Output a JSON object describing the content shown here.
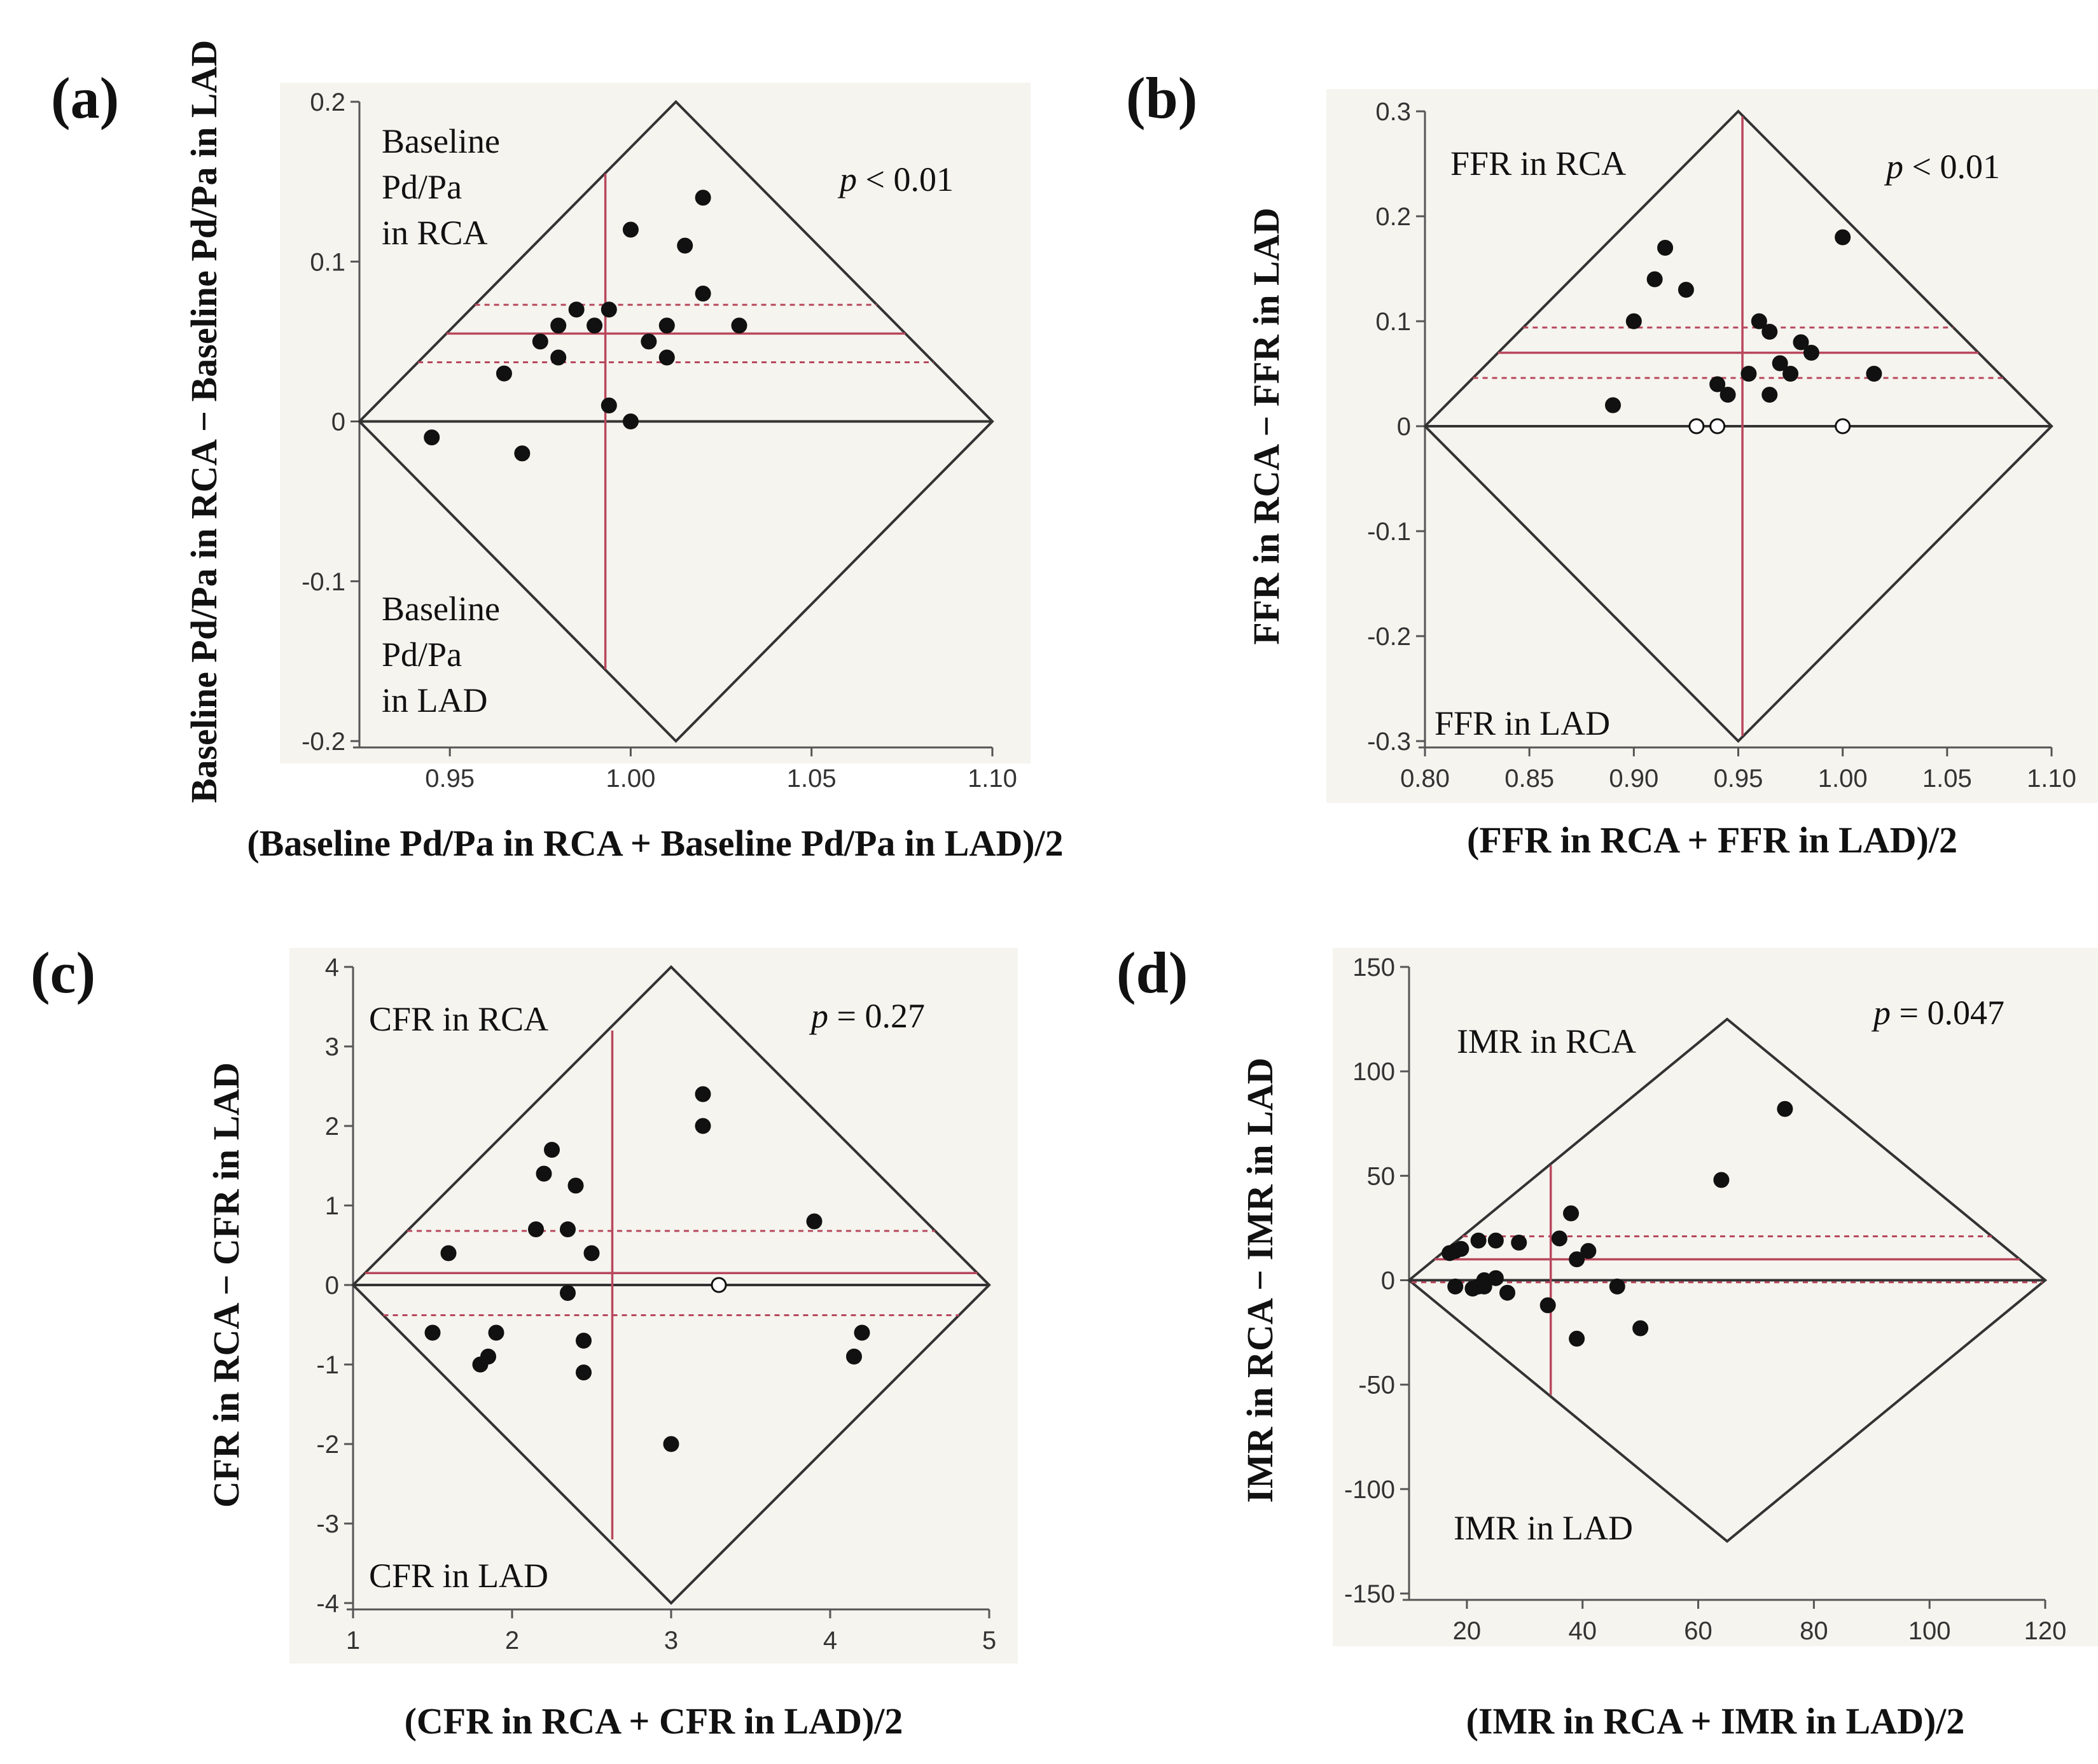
{
  "chart_data": [
    {
      "type": "scatter",
      "panel": "(a)",
      "xlabel": "(Baseline Pd/Pa in RCA  + Baseline Pd/Pa in LAD)/2",
      "ylabel": "Baseline Pd/Pa in RCA − Baseline Pd/Pa in LAD",
      "xlim": [
        0.925,
        1.1
      ],
      "ylim": [
        -0.2,
        0.2
      ],
      "x_ticks": [
        "0.95",
        "1.00",
        "1.05",
        "1.10"
      ],
      "x_tick_values": [
        0.95,
        1.0,
        1.05,
        1.1
      ],
      "y_ticks": [
        "-0.2",
        "-0.1",
        "0",
        "0.1",
        "0.2"
      ],
      "y_tick_values": [
        -0.2,
        -0.1,
        0,
        0.1,
        0.2
      ],
      "corner_top_lines": [
        "Baseline",
        "Pd/Pa",
        "in RCA"
      ],
      "corner_bottom_lines": [
        "Baseline",
        "Pd/Pa",
        "in LAD"
      ],
      "p_symbol": "p",
      "p_text": " < 0.01",
      "diamond": {
        "x_left": 0.925,
        "x_right": 1.1,
        "y_half": 0.2
      },
      "mean_x": 0.993,
      "mean_diff": 0.055,
      "ci": [
        0.037,
        0.073
      ],
      "mean_x_range": [
        -0.155,
        0.155
      ],
      "x": [
        0.945,
        0.965,
        0.97,
        0.975,
        0.98,
        0.98,
        0.985,
        0.99,
        0.994,
        0.994,
        1.0,
        1.0,
        1.005,
        1.01,
        1.01,
        1.015,
        1.02,
        1.02,
        1.03
      ],
      "y": [
        -0.01,
        0.03,
        -0.02,
        0.05,
        0.06,
        0.04,
        0.07,
        0.06,
        0.07,
        0.01,
        0.12,
        0.0,
        0.05,
        0.06,
        0.04,
        0.11,
        0.14,
        0.08,
        0.06
      ]
    },
    {
      "type": "scatter",
      "panel": "(b)",
      "xlabel": "(FFR in RCA  + FFR in LAD)/2",
      "ylabel": "FFR in RCA − FFR in LAD",
      "xlim": [
        0.8,
        1.1
      ],
      "ylim": [
        -0.3,
        0.3
      ],
      "x_ticks": [
        "0.80",
        "0.85",
        "0.90",
        "0.95",
        "1.00",
        "1.05",
        "1.10"
      ],
      "x_tick_values": [
        0.8,
        0.85,
        0.9,
        0.95,
        1.0,
        1.05,
        1.1
      ],
      "y_ticks": [
        "-0.3",
        "-0.2",
        "-0.1",
        "0",
        "0.1",
        "0.2",
        "0.3"
      ],
      "y_tick_values": [
        -0.3,
        -0.2,
        -0.1,
        0,
        0.1,
        0.2,
        0.3
      ],
      "corner_top_lines": [
        "FFR in RCA"
      ],
      "corner_bottom_lines": [
        "FFR in LAD"
      ],
      "p_symbol": "p",
      "p_text": " < 0.01",
      "diamond": {
        "x_left": 0.8,
        "x_right": 1.1,
        "y_half": 0.3
      },
      "mean_x": 0.952,
      "mean_diff": 0.07,
      "ci": [
        0.046,
        0.094
      ],
      "mean_x_range": [
        -0.295,
        0.295
      ],
      "x": [
        0.89,
        0.9,
        0.91,
        0.915,
        0.925,
        0.93,
        0.94,
        0.94,
        0.945,
        0.955,
        0.96,
        0.965,
        0.965,
        0.97,
        0.975,
        0.98,
        0.985,
        1.0,
        1.0,
        1.015
      ],
      "y": [
        0.02,
        0.1,
        0.14,
        0.17,
        0.13,
        0.0,
        0.0,
        0.04,
        0.03,
        0.05,
        0.1,
        0.09,
        0.03,
        0.06,
        0.05,
        0.08,
        0.07,
        0.18,
        0.0,
        0.05
      ],
      "open_markers": [
        5,
        6,
        18
      ]
    },
    {
      "type": "scatter",
      "panel": "(c)",
      "xlabel": "(CFR in RCA  + CFR in LAD)/2",
      "ylabel": "CFR in RCA − CFR in LAD",
      "xlim": [
        1,
        5
      ],
      "ylim": [
        -4,
        4
      ],
      "x_ticks": [
        "1",
        "2",
        "3",
        "4",
        "5"
      ],
      "x_tick_values": [
        1,
        2,
        3,
        4,
        5
      ],
      "y_ticks": [
        "-4",
        "-3",
        "-2",
        "-1",
        "0",
        "1",
        "2",
        "3",
        "4"
      ],
      "y_tick_values": [
        -4,
        -3,
        -2,
        -1,
        0,
        1,
        2,
        3,
        4
      ],
      "corner_top_lines": [
        "CFR in RCA"
      ],
      "corner_bottom_lines": [
        "CFR in LAD"
      ],
      "p_symbol": "p",
      "p_text": " = 0.27",
      "diamond": {
        "x_left": 1,
        "x_right": 5,
        "y_half": 4
      },
      "mean_x": 2.63,
      "mean_diff": 0.15,
      "ci": [
        -0.38,
        0.68
      ],
      "mean_x_range": [
        -3.2,
        3.2
      ],
      "x": [
        1.5,
        1.6,
        1.8,
        1.85,
        1.9,
        2.15,
        2.2,
        2.25,
        2.35,
        2.35,
        2.4,
        2.45,
        2.45,
        2.5,
        3.0,
        3.2,
        3.2,
        3.3,
        3.9,
        4.15,
        4.2
      ],
      "y": [
        -0.6,
        0.4,
        -1.0,
        -0.9,
        -0.6,
        0.7,
        1.4,
        1.7,
        0.7,
        -0.1,
        1.25,
        -0.7,
        -1.1,
        0.4,
        -2.0,
        2.4,
        2.0,
        0.0,
        0.8,
        -0.9,
        -0.6
      ],
      "open_markers": [
        17
      ]
    },
    {
      "type": "scatter",
      "panel": "(d)",
      "xlabel": "(IMR in RCA  + IMR in LAD)/2",
      "ylabel": "IMR in RCA − IMR in LAD",
      "xlim": [
        10,
        120
      ],
      "ylim": [
        -150,
        150
      ],
      "x_ticks": [
        "20",
        "40",
        "60",
        "80",
        "100",
        "120"
      ],
      "x_tick_values": [
        20,
        40,
        60,
        80,
        100,
        120
      ],
      "y_ticks": [
        "-150",
        "-100",
        "-50",
        "0",
        "50",
        "100",
        "150"
      ],
      "y_tick_values": [
        -150,
        -100,
        -50,
        0,
        50,
        100,
        150
      ],
      "corner_top_lines": [
        "IMR in RCA"
      ],
      "corner_bottom_lines": [
        "IMR in LAD"
      ],
      "p_symbol": "p",
      "p_text": " = 0.047",
      "diamond": {
        "x_left": 10,
        "x_right": 120,
        "y_half": 125
      },
      "mean_x": 34.5,
      "mean_diff": 10,
      "ci": [
        -1,
        21
      ],
      "mean_x_range": [
        -55,
        55
      ],
      "x": [
        17,
        18,
        18,
        19,
        21,
        22,
        22,
        23,
        23,
        25,
        25,
        27,
        29,
        34,
        36,
        38,
        39,
        39,
        41,
        46,
        50,
        64,
        75
      ],
      "y": [
        13,
        -3,
        14,
        15,
        -4,
        -3,
        19,
        0,
        -3,
        19,
        1,
        -6,
        18,
        -12,
        20,
        32,
        -28,
        10,
        14,
        -3,
        -23,
        48,
        82
      ]
    }
  ]
}
